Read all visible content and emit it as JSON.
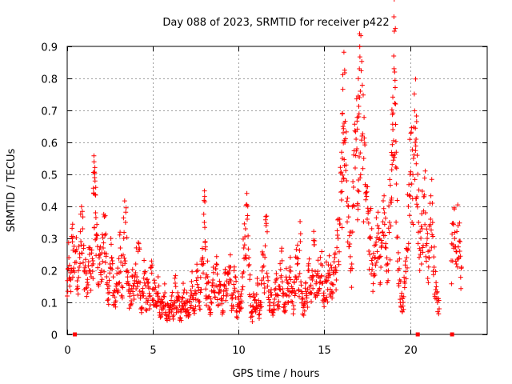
{
  "chart_data": {
    "type": "scatter",
    "title": "Day 088 of 2023, SRMTID for receiver p422",
    "xlabel": "GPS time / hours",
    "ylabel": "SRMTID / TECUs",
    "xlim": [
      0,
      24.5
    ],
    "ylim": [
      0,
      0.9
    ],
    "xticks": [
      0,
      5,
      10,
      15,
      20
    ],
    "xtick_labels": [
      "0",
      "5",
      "10",
      "15",
      "20"
    ],
    "yticks": [
      0,
      0.1,
      0.2,
      0.3,
      0.4,
      0.5,
      0.6,
      0.7,
      0.8,
      0.9
    ],
    "ytick_labels": [
      "0",
      "0.1",
      "0.2",
      "0.3",
      "0.4",
      "0.5",
      "0.6",
      "0.7",
      "0.8",
      "0.9"
    ],
    "grid": true,
    "marker": "+",
    "color": "#ff0000",
    "series": [
      {
        "name": "SRMTID",
        "points": [
          [
            0.0,
            0.12
          ],
          [
            0.1,
            0.24
          ],
          [
            0.2,
            0.17
          ],
          [
            0.3,
            0.3
          ],
          [
            0.35,
            0.2
          ],
          [
            0.5,
            0.26
          ],
          [
            0.6,
            0.15
          ],
          [
            0.7,
            0.21
          ],
          [
            0.8,
            0.29
          ],
          [
            0.9,
            0.33
          ],
          [
            1.0,
            0.14
          ],
          [
            1.1,
            0.19
          ],
          [
            1.2,
            0.13
          ],
          [
            1.3,
            0.25
          ],
          [
            1.4,
            0.18
          ],
          [
            1.5,
            0.23
          ],
          [
            1.55,
            0.44
          ],
          [
            1.6,
            0.49
          ],
          [
            1.65,
            0.38
          ],
          [
            1.7,
            0.3
          ],
          [
            1.8,
            0.16
          ],
          [
            1.9,
            0.22
          ],
          [
            2.0,
            0.2
          ],
          [
            2.1,
            0.27
          ],
          [
            2.2,
            0.31
          ],
          [
            2.3,
            0.18
          ],
          [
            2.4,
            0.11
          ],
          [
            2.5,
            0.22
          ],
          [
            2.6,
            0.24
          ],
          [
            2.7,
            0.13
          ],
          [
            2.8,
            0.1
          ],
          [
            2.9,
            0.19
          ],
          [
            3.0,
            0.16
          ],
          [
            3.1,
            0.27
          ],
          [
            3.2,
            0.12
          ],
          [
            3.3,
            0.3
          ],
          [
            3.4,
            0.35
          ],
          [
            3.5,
            0.2
          ],
          [
            3.6,
            0.14
          ],
          [
            3.7,
            0.09
          ],
          [
            3.8,
            0.18
          ],
          [
            3.9,
            0.11
          ],
          [
            4.0,
            0.22
          ],
          [
            4.1,
            0.15
          ],
          [
            4.2,
            0.27
          ],
          [
            4.3,
            0.08
          ],
          [
            4.4,
            0.12
          ],
          [
            4.5,
            0.19
          ],
          [
            4.6,
            0.1
          ],
          [
            4.7,
            0.16
          ],
          [
            4.8,
            0.08
          ],
          [
            4.9,
            0.21
          ],
          [
            5.0,
            0.11
          ],
          [
            5.1,
            0.14
          ],
          [
            5.2,
            0.09
          ],
          [
            5.3,
            0.18
          ],
          [
            5.4,
            0.06
          ],
          [
            5.5,
            0.1
          ],
          [
            5.6,
            0.08
          ],
          [
            5.7,
            0.13
          ],
          [
            5.8,
            0.05
          ],
          [
            5.9,
            0.09
          ],
          [
            6.0,
            0.07
          ],
          [
            6.1,
            0.12
          ],
          [
            6.2,
            0.06
          ],
          [
            6.3,
            0.16
          ],
          [
            6.4,
            0.08
          ],
          [
            6.5,
            0.11
          ],
          [
            6.6,
            0.05
          ],
          [
            6.7,
            0.09
          ],
          [
            6.8,
            0.13
          ],
          [
            6.9,
            0.07
          ],
          [
            7.0,
            0.1
          ],
          [
            7.1,
            0.06
          ],
          [
            7.2,
            0.12
          ],
          [
            7.3,
            0.15
          ],
          [
            7.4,
            0.08
          ],
          [
            7.5,
            0.11
          ],
          [
            7.6,
            0.2
          ],
          [
            7.7,
            0.09
          ],
          [
            7.8,
            0.14
          ],
          [
            7.9,
            0.24
          ],
          [
            8.0,
            0.35
          ],
          [
            8.05,
            0.29
          ],
          [
            8.1,
            0.12
          ],
          [
            8.2,
            0.18
          ],
          [
            8.3,
            0.08
          ],
          [
            8.4,
            0.1
          ],
          [
            8.5,
            0.17
          ],
          [
            8.6,
            0.13
          ],
          [
            8.7,
            0.22
          ],
          [
            8.8,
            0.09
          ],
          [
            8.9,
            0.14
          ],
          [
            9.0,
            0.11
          ],
          [
            9.1,
            0.07
          ],
          [
            9.2,
            0.19
          ],
          [
            9.3,
            0.12
          ],
          [
            9.4,
            0.16
          ],
          [
            9.5,
            0.21
          ],
          [
            9.6,
            0.09
          ],
          [
            9.7,
            0.13
          ],
          [
            9.8,
            0.18
          ],
          [
            9.9,
            0.07
          ],
          [
            10.0,
            0.11
          ],
          [
            10.1,
            0.08
          ],
          [
            10.2,
            0.14
          ],
          [
            10.3,
            0.27
          ],
          [
            10.4,
            0.33
          ],
          [
            10.5,
            0.36
          ],
          [
            10.6,
            0.24
          ],
          [
            10.7,
            0.09
          ],
          [
            10.8,
            0.04
          ],
          [
            10.9,
            0.12
          ],
          [
            11.0,
            0.07
          ],
          [
            11.1,
            0.16
          ],
          [
            11.2,
            0.05
          ],
          [
            11.3,
            0.1
          ],
          [
            11.4,
            0.21
          ],
          [
            11.5,
            0.13
          ],
          [
            11.6,
            0.34
          ],
          [
            11.7,
            0.18
          ],
          [
            11.8,
            0.09
          ],
          [
            11.9,
            0.14
          ],
          [
            12.0,
            0.06
          ],
          [
            12.1,
            0.11
          ],
          [
            12.2,
            0.19
          ],
          [
            12.3,
            0.08
          ],
          [
            12.4,
            0.15
          ],
          [
            12.5,
            0.26
          ],
          [
            12.6,
            0.12
          ],
          [
            12.7,
            0.07
          ],
          [
            12.8,
            0.17
          ],
          [
            12.9,
            0.1
          ],
          [
            13.0,
            0.21
          ],
          [
            13.1,
            0.13
          ],
          [
            13.2,
            0.09
          ],
          [
            13.3,
            0.18
          ],
          [
            13.4,
            0.24
          ],
          [
            13.5,
            0.14
          ],
          [
            13.6,
            0.29
          ],
          [
            13.7,
            0.11
          ],
          [
            13.8,
            0.06
          ],
          [
            13.9,
            0.16
          ],
          [
            14.0,
            0.1
          ],
          [
            14.1,
            0.2
          ],
          [
            14.2,
            0.13
          ],
          [
            14.3,
            0.17
          ],
          [
            14.4,
            0.28
          ],
          [
            14.5,
            0.12
          ],
          [
            14.6,
            0.19
          ],
          [
            14.7,
            0.14
          ],
          [
            14.8,
            0.22
          ],
          [
            14.9,
            0.16
          ],
          [
            15.0,
            0.11
          ],
          [
            15.1,
            0.18
          ],
          [
            15.2,
            0.14
          ],
          [
            15.3,
            0.2
          ],
          [
            15.4,
            0.16
          ],
          [
            15.5,
            0.13
          ],
          [
            15.6,
            0.24
          ],
          [
            15.7,
            0.17
          ],
          [
            15.8,
            0.3
          ],
          [
            15.9,
            0.36
          ],
          [
            16.0,
            0.42
          ],
          [
            16.05,
            0.55
          ],
          [
            16.1,
            0.63
          ],
          [
            16.15,
            0.66
          ],
          [
            16.2,
            0.6
          ],
          [
            16.3,
            0.48
          ],
          [
            16.4,
            0.4
          ],
          [
            16.5,
            0.32
          ],
          [
            16.6,
            0.22
          ],
          [
            16.7,
            0.46
          ],
          [
            16.8,
            0.52
          ],
          [
            16.9,
            0.58
          ],
          [
            16.95,
            0.45
          ],
          [
            17.0,
            0.68
          ],
          [
            17.05,
            0.74
          ],
          [
            17.1,
            0.76
          ],
          [
            17.2,
            0.62
          ],
          [
            17.3,
            0.55
          ],
          [
            17.4,
            0.44
          ],
          [
            17.5,
            0.36
          ],
          [
            17.6,
            0.26
          ],
          [
            17.7,
            0.3
          ],
          [
            17.8,
            0.22
          ],
          [
            17.9,
            0.19
          ],
          [
            18.0,
            0.28
          ],
          [
            18.1,
            0.34
          ],
          [
            18.2,
            0.24
          ],
          [
            18.3,
            0.21
          ],
          [
            18.4,
            0.32
          ],
          [
            18.5,
            0.38
          ],
          [
            18.6,
            0.27
          ],
          [
            18.7,
            0.22
          ],
          [
            18.8,
            0.35
          ],
          [
            18.9,
            0.42
          ],
          [
            18.95,
            0.56
          ],
          [
            19.0,
            0.64
          ],
          [
            19.05,
            0.87
          ],
          [
            19.1,
            0.82
          ],
          [
            19.15,
            0.72
          ],
          [
            19.2,
            0.47
          ],
          [
            19.3,
            0.2
          ],
          [
            19.4,
            0.17
          ],
          [
            19.5,
            0.12
          ],
          [
            19.6,
            0.1
          ],
          [
            19.7,
            0.16
          ],
          [
            19.8,
            0.24
          ],
          [
            19.9,
            0.4
          ],
          [
            20.0,
            0.5
          ],
          [
            20.1,
            0.47
          ],
          [
            20.2,
            0.55
          ],
          [
            20.3,
            0.6
          ],
          [
            20.35,
            0.61
          ],
          [
            20.4,
            0.43
          ],
          [
            20.5,
            0.35
          ],
          [
            20.6,
            0.25
          ],
          [
            20.7,
            0.33
          ],
          [
            20.8,
            0.43
          ],
          [
            20.9,
            0.38
          ],
          [
            21.0,
            0.3
          ],
          [
            21.1,
            0.24
          ],
          [
            21.2,
            0.36
          ],
          [
            21.3,
            0.41
          ],
          [
            21.4,
            0.21
          ],
          [
            21.5,
            0.14
          ],
          [
            21.6,
            0.1
          ],
          [
            21.7,
            0.08
          ],
          [
            22.4,
            0.23
          ],
          [
            22.5,
            0.28
          ],
          [
            22.6,
            0.3
          ],
          [
            22.7,
            0.22
          ],
          [
            22.8,
            0.34
          ],
          [
            22.9,
            0.26
          ],
          [
            23.0,
            0.21
          ]
        ]
      }
    ],
    "gap_markers_x": [
      0.45,
      20.45,
      22.45
    ]
  }
}
